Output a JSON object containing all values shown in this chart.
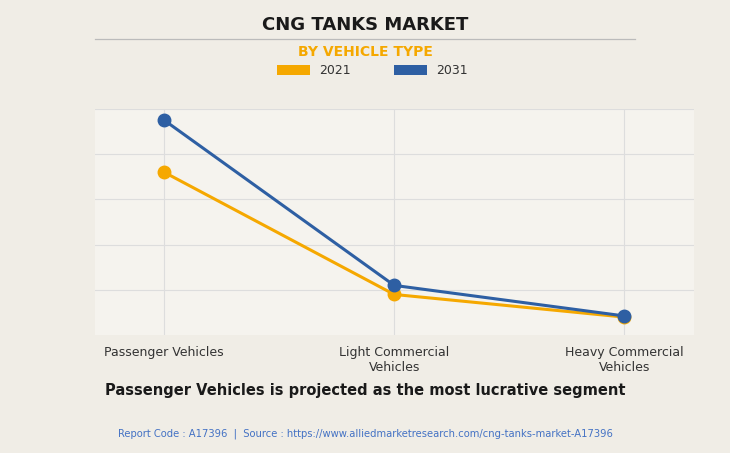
{
  "title": "CNG TANKS MARKET",
  "subtitle": "BY VEHICLE TYPE",
  "categories": [
    "Passenger Vehicles",
    "Light Commercial\nVehicles",
    "Heavy Commercial\nVehicles"
  ],
  "series": [
    {
      "label": "2021",
      "color": "#F5A800",
      "values": [
        72,
        18,
        8
      ]
    },
    {
      "label": "2031",
      "color": "#2E5FA3",
      "values": [
        95,
        22,
        8.5
      ]
    }
  ],
  "background_color": "#F0EDE6",
  "plot_bg_color": "#F5F3EE",
  "title_fontsize": 13,
  "subtitle_fontsize": 10,
  "subtitle_color": "#F5A800",
  "grid_color": "#DDDDDD",
  "footer_text": "Report Code : A17396  |  Source : https://www.alliedmarketresearch.com/cng-tanks-market-A17396",
  "footer_color": "#4472C4",
  "bottom_label": "Passenger Vehicles is projected as the most lucrative segment",
  "ylim": [
    0,
    100
  ],
  "marker_size": 9,
  "linewidth": 2.2
}
